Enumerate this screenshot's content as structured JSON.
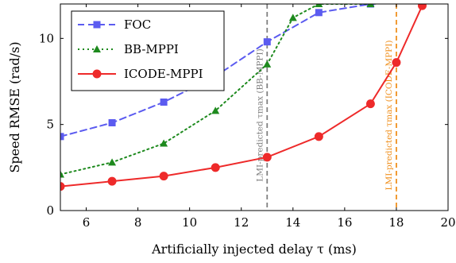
{
  "chart_data": {
    "type": "line",
    "xlabel": "Artificially injected delay τ (ms)",
    "ylabel": "Speed RMSE (rad/s)",
    "xlim": [
      5,
      20
    ],
    "ylim": [
      0,
      12
    ],
    "xticks": [
      "6",
      "8",
      "10",
      "12",
      "14",
      "16",
      "18",
      "20"
    ],
    "yticks": [
      "0",
      "5",
      "10"
    ],
    "grid": false,
    "legend_position": "top-left",
    "series": [
      {
        "name": "FOC",
        "color": "#5b5bf0",
        "style": "dashed",
        "marker": "square",
        "x": [
          5,
          7,
          9,
          11,
          13,
          15,
          17,
          19
        ],
        "y": [
          4.3,
          5.1,
          6.3,
          7.8,
          9.8,
          11.5,
          12.0,
          12.2
        ]
      },
      {
        "name": "BB-MPPI",
        "color": "#1e8a1e",
        "style": "dotted",
        "marker": "triangle",
        "x": [
          5,
          7,
          9,
          11,
          13,
          14,
          15,
          17,
          19
        ],
        "y": [
          2.1,
          2.8,
          3.9,
          5.8,
          8.5,
          11.2,
          12.0,
          12.0,
          12.2
        ]
      },
      {
        "name": "ICODE-MPPI",
        "color": "#ee2a2a",
        "style": "solid",
        "marker": "circle",
        "x": [
          5,
          7,
          9,
          11,
          13,
          15,
          17,
          18,
          19
        ],
        "y": [
          1.4,
          1.7,
          2.0,
          2.5,
          3.1,
          4.3,
          6.2,
          8.6,
          11.9
        ]
      }
    ],
    "vlines": [
      {
        "x": 13,
        "color": "#808080",
        "label": "LMI-predicted τmax (BB-MPPI)"
      },
      {
        "x": 18,
        "color": "#f0901e",
        "label": "LMI-predicted τmax (ICODE-MPPI)"
      }
    ]
  }
}
